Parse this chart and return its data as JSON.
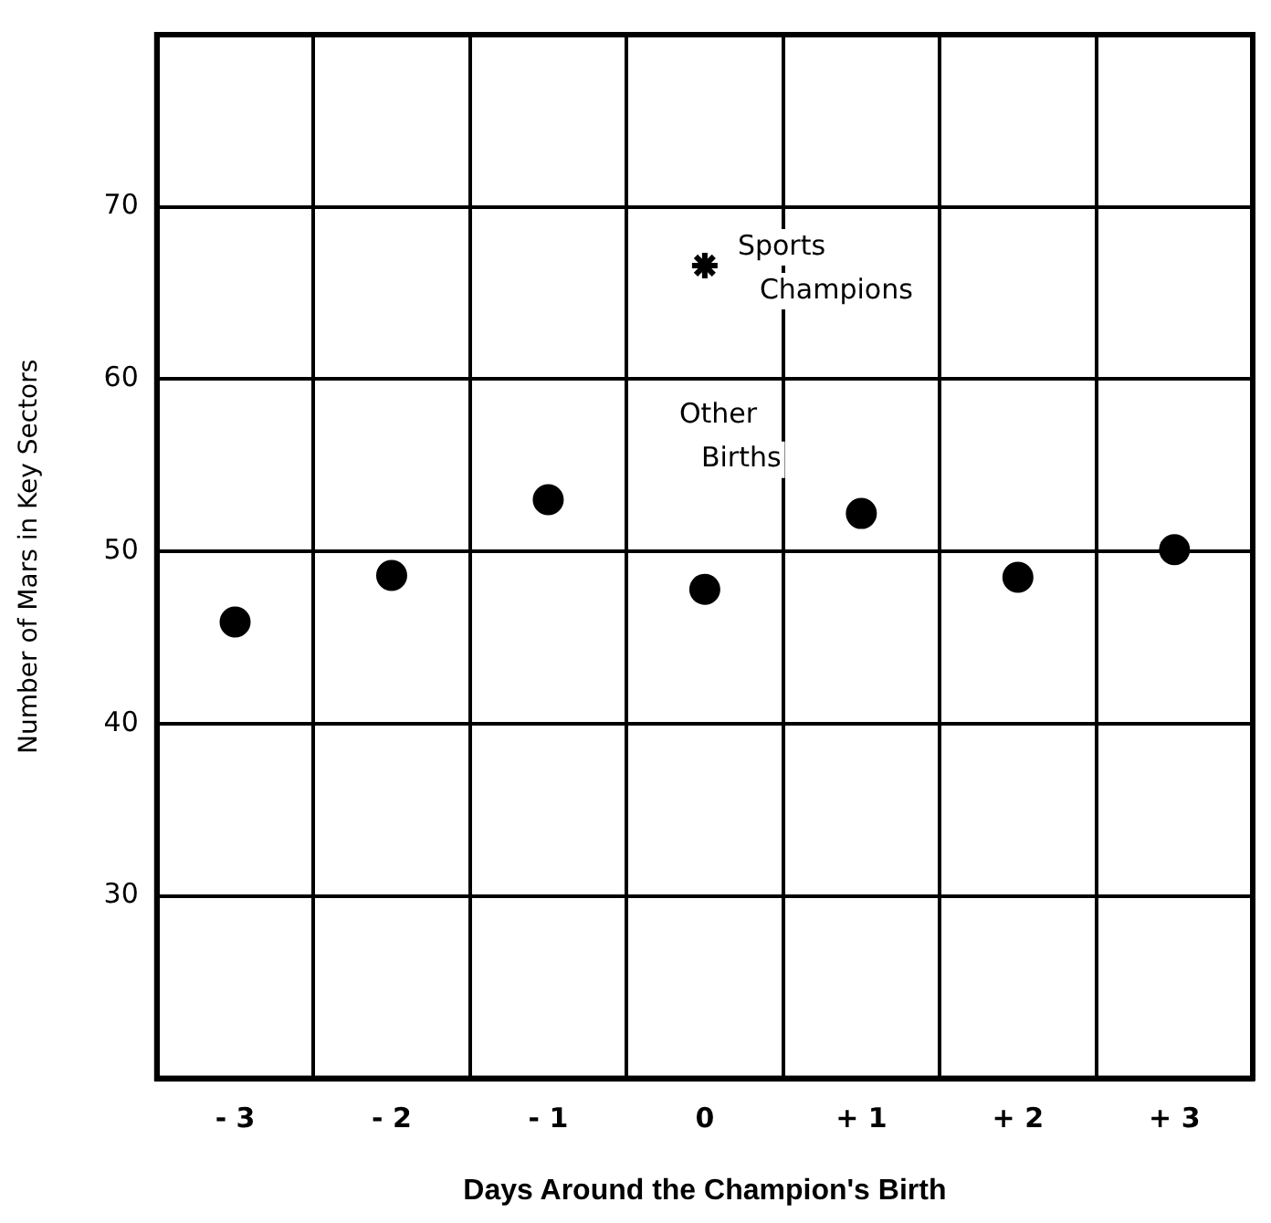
{
  "chart_data": {
    "type": "scatter",
    "xlabel": "Days Around the Champion's Birth",
    "ylabel": "Number of Mars in Key Sectors",
    "categories": [
      "- 3",
      "- 2",
      "- 1",
      "0",
      "+ 1",
      "+ 2",
      "+ 3"
    ],
    "series": [
      {
        "name": "Other Births",
        "color": "#000000",
        "marker": "circle",
        "values": [
          45.9,
          48.6,
          53.0,
          47.8,
          52.2,
          48.5,
          50.1
        ]
      },
      {
        "name": "Sports Champions",
        "color": "#000000",
        "marker": "cross",
        "values": [
          null,
          null,
          null,
          66.6,
          null,
          null,
          null
        ]
      }
    ],
    "ylim": [
      19.4,
      80
    ],
    "yticks": [
      30,
      40,
      50,
      60,
      70
    ],
    "grid": true,
    "legend": false
  }
}
